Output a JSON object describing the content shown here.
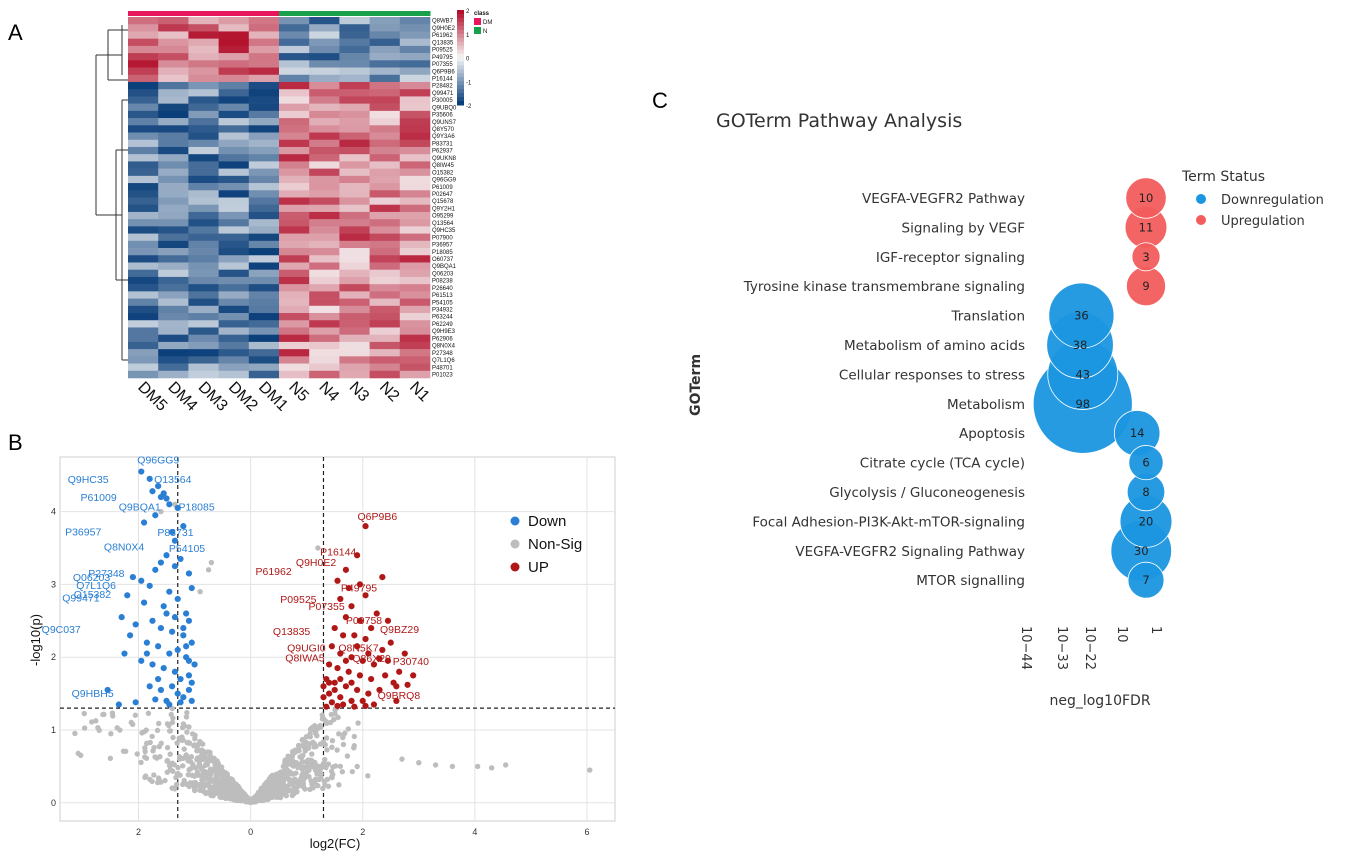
{
  "panels": {
    "a": "A",
    "b": "B",
    "c": "C"
  },
  "chart_data": [
    {
      "type": "heatmap",
      "panel": "A",
      "columns": [
        "DM5",
        "DM4",
        "DM3",
        "DM2",
        "DM1",
        "N5",
        "N4",
        "N3",
        "N2",
        "N1"
      ],
      "column_classes": [
        "DM",
        "DM",
        "DM",
        "DM",
        "DM",
        "N",
        "N",
        "N",
        "N",
        "N"
      ],
      "rows": [
        "Q8WB7",
        "Q9H0E2",
        "P61962",
        "Q13835",
        "P09525",
        "P49795",
        "P07355",
        "Q6P9B6",
        "P16144",
        "P28482",
        "Q99471",
        "P30005",
        "Q9UBQ0",
        "P35606",
        "Q9UNS7",
        "Q8Y570",
        "Q9Y3A6",
        "P83731",
        "P62937",
        "Q9UKN8",
        "Q8IW45",
        "O15382",
        "Q96GG9",
        "P61009",
        "P02647",
        "Q15678",
        "Q9Y2H1",
        "O95299",
        "Q13564",
        "Q9HC35",
        "P07900",
        "P36957",
        "P18085",
        "O60737",
        "Q9BQA1",
        "Q06203",
        "P08238",
        "P26640",
        "P61513",
        "P54105",
        "P34932",
        "P63244",
        "P62249",
        "Q9H9E3",
        "P62906",
        "Q8N0X4",
        "P27348",
        "Q7L1Q6",
        "P48701",
        "P01023"
      ],
      "color_scale": {
        "min": -2,
        "max": 2,
        "ticks": [
          "2",
          "1",
          "0",
          "-1",
          "-2"
        ],
        "low": "#0b3f7a",
        "mid": "#f7f7f7",
        "high": "#b2102b"
      },
      "legend_title": "class",
      "legend": [
        {
          "name": "DM",
          "color": "#e8175d"
        },
        {
          "name": "N",
          "color": "#18a04a"
        }
      ]
    },
    {
      "type": "scatter",
      "panel": "B",
      "xlabel": "log2(FC)",
      "ylabel": "-log10(p)",
      "xlim": [
        -3.4,
        6.5
      ],
      "ylim": [
        -0.25,
        4.75
      ],
      "x_ticks": [
        -4,
        -2,
        0,
        2,
        4,
        6
      ],
      "x_tick_labels": [
        "",
        "2",
        "0",
        "2",
        "4",
        "6"
      ],
      "y_ticks": [
        0,
        1,
        2,
        3,
        4
      ],
      "y_tick_labels": [
        "0",
        "1",
        "2",
        "3",
        "4"
      ],
      "grid": true,
      "threshold_lines": {
        "x": [
          -1.3,
          1.3
        ],
        "y": 1.3
      },
      "legend_position": "top-right",
      "series": [
        {
          "name": "Down",
          "color": "#2a7fd4"
        },
        {
          "name": "Non-Sig",
          "color": "#bdbdbd"
        },
        {
          "name": "UP",
          "color": "#b01818"
        }
      ],
      "down_points": [
        [
          -1.95,
          4.55
        ],
        [
          -1.8,
          4.45
        ],
        [
          -1.65,
          4.35
        ],
        [
          -1.75,
          4.28
        ],
        [
          -1.6,
          4.2
        ],
        [
          -1.5,
          4.18
        ],
        [
          -1.55,
          4.25
        ],
        [
          -1.45,
          4.1
        ],
        [
          -1.3,
          4.05
        ],
        [
          -1.9,
          3.85
        ],
        [
          -1.7,
          3.95
        ],
        [
          -1.4,
          3.72
        ],
        [
          -1.2,
          3.8
        ],
        [
          -1.35,
          3.6
        ],
        [
          -1.5,
          3.4
        ],
        [
          -1.6,
          3.3
        ],
        [
          -1.7,
          3.2
        ],
        [
          -1.35,
          3.25
        ],
        [
          -1.25,
          3.35
        ],
        [
          -1.1,
          3.15
        ],
        [
          -2.1,
          3.1
        ],
        [
          -1.95,
          3.05
        ],
        [
          -1.8,
          2.98
        ],
        [
          -2.2,
          2.85
        ],
        [
          -1.9,
          2.75
        ],
        [
          -1.45,
          2.9
        ],
        [
          -1.55,
          2.7
        ],
        [
          -1.3,
          2.8
        ],
        [
          -1.15,
          2.6
        ],
        [
          -1.05,
          2.95
        ],
        [
          -2.3,
          2.55
        ],
        [
          -2.05,
          2.45
        ],
        [
          -1.75,
          2.5
        ],
        [
          -1.6,
          2.4
        ],
        [
          -1.4,
          2.35
        ],
        [
          -1.2,
          2.3
        ],
        [
          -1.1,
          2.5
        ],
        [
          -2.15,
          2.3
        ],
        [
          -1.85,
          2.2
        ],
        [
          -1.65,
          2.15
        ],
        [
          -1.45,
          2.05
        ],
        [
          -1.3,
          2.1
        ],
        [
          -1.15,
          2.0
        ],
        [
          -2.25,
          2.05
        ],
        [
          -1.95,
          1.95
        ],
        [
          -1.75,
          1.9
        ],
        [
          -1.55,
          1.85
        ],
        [
          -1.35,
          1.8
        ],
        [
          -1.25,
          1.7
        ],
        [
          -1.1,
          1.75
        ],
        [
          -1.05,
          2.2
        ],
        [
          -1.4,
          1.6
        ],
        [
          -1.6,
          1.55
        ],
        [
          -1.8,
          1.6
        ],
        [
          -1.3,
          1.5
        ],
        [
          -1.2,
          1.45
        ],
        [
          -1.1,
          1.55
        ],
        [
          -1.5,
          1.4
        ],
        [
          -1.7,
          1.42
        ],
        [
          -2.55,
          1.55
        ],
        [
          -2.05,
          1.38
        ],
        [
          -2.35,
          1.35
        ],
        [
          -1.45,
          1.35
        ],
        [
          -1.25,
          1.38
        ],
        [
          -1.05,
          1.4
        ],
        [
          -1.0,
          1.9
        ],
        [
          -1.05,
          1.65
        ],
        [
          -1.15,
          2.15
        ],
        [
          -1.35,
          2.55
        ],
        [
          -1.5,
          2.6
        ],
        [
          -1.2,
          2.4
        ],
        [
          -1.65,
          1.7
        ],
        [
          -1.85,
          2.05
        ],
        [
          -1.1,
          1.95
        ]
      ],
      "down_labels": [
        {
          "id": "Q96GG9",
          "x": -1.95,
          "y": 4.55
        },
        {
          "id": "Q9HC35",
          "x": -1.8,
          "y": 4.45
        },
        {
          "id": "Q13564",
          "x": -1.65,
          "y": 4.35
        },
        {
          "id": "P61009",
          "x": -1.75,
          "y": 4.28
        },
        {
          "id": "P18085",
          "x": -1.5,
          "y": 4.18
        },
        {
          "id": "Q9BQA1",
          "x": -1.55,
          "y": 4.25
        },
        {
          "id": "P83731",
          "x": -1.2,
          "y": 3.8
        },
        {
          "id": "P36957",
          "x": -1.9,
          "y": 3.85
        },
        {
          "id": "Q8N0X4",
          "x": -1.6,
          "y": 3.3
        },
        {
          "id": "P54105",
          "x": -1.35,
          "y": 3.25
        },
        {
          "id": "Q06203",
          "x": -2.1,
          "y": 3.1
        },
        {
          "id": "P27348",
          "x": -1.7,
          "y": 3.2
        },
        {
          "id": "Q99471",
          "x": -2.2,
          "y": 2.85
        },
        {
          "id": "Q7L1Q6",
          "x": -1.95,
          "y": 3.05
        },
        {
          "id": "O15382",
          "x": -1.8,
          "y": 2.98
        },
        {
          "id": "Q9C037",
          "x": -2.3,
          "y": 2.55
        },
        {
          "id": "Q9HBH5",
          "x": -2.55,
          "y": 1.55
        }
      ],
      "up_points": [
        [
          2.05,
          3.8
        ],
        [
          1.9,
          3.4
        ],
        [
          1.7,
          3.2
        ],
        [
          1.55,
          3.05
        ],
        [
          1.75,
          2.95
        ],
        [
          1.95,
          3.0
        ],
        [
          2.35,
          3.1
        ],
        [
          1.6,
          2.8
        ],
        [
          1.8,
          2.7
        ],
        [
          2.05,
          2.85
        ],
        [
          2.25,
          2.6
        ],
        [
          2.45,
          2.5
        ],
        [
          1.7,
          2.55
        ],
        [
          1.95,
          2.5
        ],
        [
          2.15,
          2.4
        ],
        [
          1.5,
          2.4
        ],
        [
          1.65,
          2.3
        ],
        [
          1.85,
          2.3
        ],
        [
          2.05,
          2.25
        ],
        [
          2.5,
          2.2
        ],
        [
          2.35,
          2.1
        ],
        [
          2.75,
          2.05
        ],
        [
          1.45,
          2.15
        ],
        [
          1.6,
          2.05
        ],
        [
          1.8,
          2.0
        ],
        [
          2.0,
          1.95
        ],
        [
          2.2,
          1.9
        ],
        [
          2.45,
          1.95
        ],
        [
          2.65,
          1.8
        ],
        [
          1.4,
          1.9
        ],
        [
          1.55,
          1.85
        ],
        [
          1.75,
          1.8
        ],
        [
          1.95,
          1.75
        ],
        [
          2.15,
          1.7
        ],
        [
          2.4,
          1.75
        ],
        [
          2.6,
          1.6
        ],
        [
          1.35,
          1.7
        ],
        [
          1.5,
          1.65
        ],
        [
          1.7,
          1.6
        ],
        [
          1.9,
          1.55
        ],
        [
          2.1,
          1.5
        ],
        [
          2.3,
          1.55
        ],
        [
          1.4,
          1.5
        ],
        [
          1.6,
          1.45
        ],
        [
          1.8,
          1.4
        ],
        [
          2.0,
          1.4
        ],
        [
          2.2,
          1.35
        ],
        [
          1.3,
          1.45
        ],
        [
          1.45,
          1.38
        ],
        [
          1.65,
          1.35
        ],
        [
          1.85,
          1.32
        ],
        [
          2.05,
          1.33
        ],
        [
          1.35,
          1.32
        ],
        [
          1.55,
          1.33
        ],
        [
          2.6,
          1.4
        ],
        [
          1.3,
          1.6
        ],
        [
          1.4,
          1.65
        ],
        [
          1.5,
          1.55
        ],
        [
          1.9,
          2.15
        ],
        [
          2.3,
          1.98
        ],
        [
          1.7,
          1.95
        ],
        [
          2.1,
          2.05
        ],
        [
          2.55,
          1.65
        ],
        [
          1.6,
          1.7
        ],
        [
          1.8,
          1.65
        ],
        [
          2.8,
          1.62
        ],
        [
          2.9,
          1.75
        ]
      ],
      "up_labels": [
        {
          "id": "Q6P9B6",
          "x": 2.05,
          "y": 3.8
        },
        {
          "id": "P16144",
          "x": 1.9,
          "y": 3.4
        },
        {
          "id": "Q9H0E2",
          "x": 1.7,
          "y": 3.2
        },
        {
          "id": "P61962",
          "x": 1.55,
          "y": 3.05
        },
        {
          "id": "P49795",
          "x": 1.95,
          "y": 3.0
        },
        {
          "id": "P09525",
          "x": 1.6,
          "y": 2.8
        },
        {
          "id": "P07355",
          "x": 1.8,
          "y": 2.7
        },
        {
          "id": "Q13835",
          "x": 1.7,
          "y": 2.55
        },
        {
          "id": "P09758",
          "x": 1.95,
          "y": 2.5
        },
        {
          "id": "Q9UGI0",
          "x": 1.65,
          "y": 2.3
        },
        {
          "id": "Q8N5K7",
          "x": 1.85,
          "y": 2.3
        },
        {
          "id": "Q9BZ29",
          "x": 2.45,
          "y": 2.5
        },
        {
          "id": "Q86X29",
          "x": 2.35,
          "y": 2.1
        },
        {
          "id": "Q8IWA5",
          "x": 1.6,
          "y": 2.05
        },
        {
          "id": "P30740",
          "x": 2.5,
          "y": 1.95
        },
        {
          "id": "Q9BRQ8",
          "x": 2.8,
          "y": 1.62
        }
      ]
    },
    {
      "type": "scatter",
      "subtype": "bubble",
      "panel": "C",
      "title": "GOTerm Pathway Analysis",
      "xlabel": "neg_log10FDR",
      "ylabel": "GOTerm",
      "x_scale": "log",
      "x_ticks": [
        44,
        33,
        22,
        1,
        0
      ],
      "x_tick_labels": [
        "10−44",
        "10−33",
        "10−22",
        "10",
        "1"
      ],
      "legend_title": "Term Status",
      "legend_position": "right",
      "legend": [
        {
          "name": "Downregulation",
          "color": "#1b96e0"
        },
        {
          "name": "Upregulation",
          "color": "#f25c5c"
        }
      ],
      "terms": [
        {
          "name": "VEGFA-VEGFR2 Pathway",
          "status": "Upregulation",
          "count": 10,
          "neg_log10FDR": 0.45
        },
        {
          "name": "Signaling by VEGF",
          "status": "Upregulation",
          "count": 11,
          "neg_log10FDR": 0.45
        },
        {
          "name": "IGF-receptor signaling",
          "status": "Upregulation",
          "count": 3,
          "neg_log10FDR": 0.45
        },
        {
          "name": "Tyrosine kinase transmembrane signaling",
          "status": "Upregulation",
          "count": 9,
          "neg_log10FDR": 0.45
        },
        {
          "name": "Translation",
          "status": "Downregulation",
          "count": 36,
          "neg_log10FDR": 1.4
        },
        {
          "name": "Metabolism of amino acids",
          "status": "Downregulation",
          "count": 38,
          "neg_log10FDR": 1.42
        },
        {
          "name": "Cellular responses to stress",
          "status": "Downregulation",
          "count": 43,
          "neg_log10FDR": 1.38
        },
        {
          "name": "Metabolism",
          "status": "Downregulation",
          "count": 98,
          "neg_log10FDR": 1.38
        },
        {
          "name": "Apoptosis",
          "status": "Downregulation",
          "count": 14,
          "neg_log10FDR": 0.58
        },
        {
          "name": "Citrate cycle (TCA cycle)",
          "status": "Downregulation",
          "count": 6,
          "neg_log10FDR": 0.45
        },
        {
          "name": "Glycolysis / Gluconeogenesis",
          "status": "Downregulation",
          "count": 8,
          "neg_log10FDR": 0.45
        },
        {
          "name": "Focal Adhesion-PI3K-Akt-mTOR-signaling",
          "status": "Downregulation",
          "count": 20,
          "neg_log10FDR": 0.45
        },
        {
          "name": "VEGFA-VEGFR2 Signaling Pathway",
          "status": "Downregulation",
          "count": 30,
          "neg_log10FDR": 0.52
        },
        {
          "name": "MTOR signalling",
          "status": "Downregulation",
          "count": 7,
          "neg_log10FDR": 0.45
        }
      ]
    }
  ]
}
